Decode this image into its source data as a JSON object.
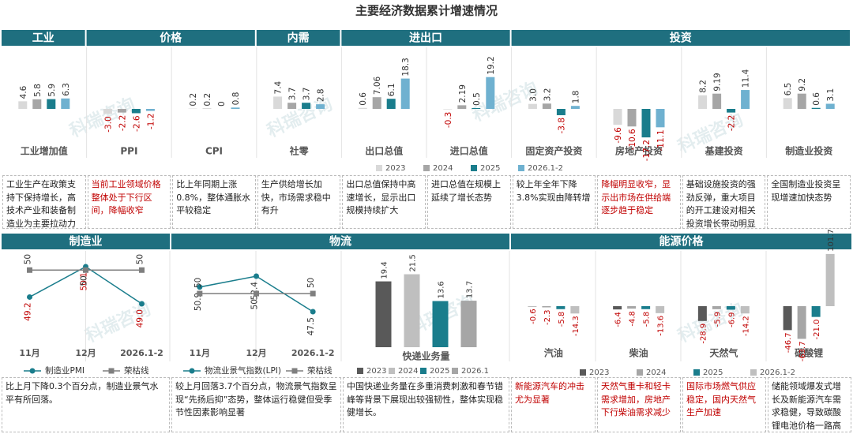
{
  "title": "主要经济数据累计增速情况",
  "watermark": "科瑞咨询",
  "top_sections": [
    "工业",
    "价格",
    "内需",
    "进出口",
    "投资"
  ],
  "bottom_sections": [
    "制造业",
    "物流",
    "能源价格"
  ],
  "top_notes": [
    {
      "text": "工业生产在政策支持下保持增长，高技术产业和装备制造业为主要拉动力",
      "color": "#222222"
    },
    {
      "text": "当前工业领域价格整体处于下行区间，降幅收窄",
      "color": "#c00000"
    },
    {
      "text": "比上年同期上涨0.8%，整体通胀水平较稳定",
      "color": "#222222"
    },
    {
      "text": "生产供给增长加快，市场需求稳中有升",
      "color": "#222222"
    },
    {
      "text": "出口总值保持中高速增长，显示出口规模持续扩大",
      "color": "#222222"
    },
    {
      "text": "进口总值在规模上延续了增长态势",
      "color": "#222222"
    },
    {
      "text": "较上年全年下降3.8%实现由降转增",
      "color": "#222222"
    },
    {
      "text": "降幅明显收窄，显示出市场在供给端逐步趋于稳定",
      "color": "#c00000"
    },
    {
      "text": "基础设施投资的强劲反弹，重大项目的开工建设对相关投资增长带动明显",
      "color": "#222222"
    },
    {
      "text": "全国制造业投资呈现增速加快态势",
      "color": "#222222"
    }
  ],
  "bottom_notes": [
    {
      "text": "比上月下降0.3个百分点，制造业景气水平有所回落。",
      "color": "#222222"
    },
    {
      "text": "较上月回落3.7个百分点，物流景气指数呈现“先扬后抑”态势，整体运行稳健但受季节性因素影响显著",
      "color": "#222222"
    },
    {
      "text": "中国快递业务量在多重消费刺激和春节错峰等背景下展现出较强韧性，整体实现稳健增长。",
      "color": "#222222"
    },
    {
      "text": "新能源汽车的冲击尤为显著",
      "color": "#c00000"
    },
    {
      "text": "天然气重卡和轻卡需求增加，房地产下行柴油需求减少",
      "color": "#c00000"
    },
    {
      "text": "国际市场燃气供应稳定，国内天然气生产加速",
      "color": "#c00000"
    },
    {
      "text": "储能领域爆发式增长及新能源汽车需求稳健，导致碳酸锂电池价格一路高涨",
      "color": "#222222"
    }
  ],
  "chart_data": [
    {
      "type": "bar",
      "categories": [
        "工业增加值",
        "PPI",
        "CPI",
        "社零",
        "出口总值",
        "进口总值",
        "固定资产投资",
        "房地产投资",
        "基建投资",
        "制造业投资"
      ],
      "series": [
        {
          "name": "2023",
          "color": "#d9d9d9",
          "values": [
            4.6,
            -3.0,
            0.2,
            7.4,
            0.6,
            -0.3,
            3.0,
            -9.6,
            8.2,
            6.5
          ],
          "value_labels": [
            "4.6",
            "-3.0",
            "0.2",
            "7.4",
            "0.6",
            "-0.3",
            "3.0",
            "-9.6",
            "8.2",
            "6.5"
          ]
        },
        {
          "name": "2024",
          "color": "#a6a6a6",
          "values": [
            5.8,
            -2.2,
            0.2,
            3.7,
            7.06,
            2.19,
            3.2,
            -10.6,
            9.19,
            9.2
          ],
          "value_labels": [
            "5.8",
            "-2.2",
            "0.2",
            "3.7",
            "7.06",
            "2.19",
            "3.2",
            "-10.6",
            "9.19",
            "9.2"
          ]
        },
        {
          "name": "2025",
          "color": "#1a7d8c",
          "values": [
            5.9,
            -2.6,
            0,
            3.7,
            6.1,
            0.5,
            -3.8,
            -17.2,
            -2.2,
            0.6
          ],
          "value_labels": [
            "5.9",
            "-2.6",
            "0",
            "3.7",
            "6.1",
            "0.5",
            "-3.8",
            "-17.2",
            "-2.2",
            "0.6"
          ]
        },
        {
          "name": "2026.1-2",
          "color": "#6fb1d0",
          "values": [
            6.3,
            -1.2,
            0.8,
            2.8,
            18.3,
            19.2,
            1.8,
            -11.1,
            11.4,
            3.1
          ],
          "value_labels": [
            "6.3",
            "-1.2",
            "0.8",
            "2.8",
            "18.3",
            "19.2",
            "1.8",
            "-11.1",
            "11.4",
            "3.1"
          ]
        }
      ]
    },
    {
      "type": "line",
      "categories": [
        "11月",
        "12月",
        "2026.1-2"
      ],
      "series": [
        {
          "name": "制造业PMI",
          "color": "#1a7d8c",
          "values": [
            49.2,
            50.1,
            49.0
          ],
          "value_labels": [
            "49.2",
            "50.1",
            "49.0"
          ]
        },
        {
          "name": "荣枯线",
          "color": "#7f7f7f",
          "values": [
            50,
            50,
            50
          ]
        }
      ]
    },
    {
      "type": "line",
      "categories": [
        "11月",
        "12月",
        "2026.1-2"
      ],
      "series": [
        {
          "name": "物流业景气指数(LPI)",
          "color": "#1a7d8c",
          "values": [
            50.9,
            52.4,
            47.5
          ]
        },
        {
          "name": "荣枯线",
          "color": "#7f7f7f",
          "values": [
            50,
            50,
            50
          ]
        }
      ]
    },
    {
      "type": "bar",
      "categories": [
        "快递业务量"
      ],
      "series": [
        {
          "name": "2023",
          "color": "#595959",
          "values": [
            19.4
          ]
        },
        {
          "name": "2024",
          "color": "#bfbfbf",
          "values": [
            21.5
          ]
        },
        {
          "name": "2025",
          "color": "#1a7d8c",
          "values": [
            13.6
          ]
        },
        {
          "name": "2026.1",
          "color": "#a6a6a6",
          "values": [
            13.7
          ]
        }
      ]
    },
    {
      "type": "bar",
      "categories": [
        "汽油",
        "柴油",
        "天然气",
        "碳酸锂"
      ],
      "series": [
        {
          "name": "2023",
          "color": "#595959",
          "values": [
            -0.6,
            -6.4,
            -28.9,
            -46.7
          ]
        },
        {
          "name": "2024",
          "color": "#a6a6a6",
          "values": [
            -2.3,
            -4.8,
            -5.9,
            -63.7
          ]
        },
        {
          "name": "2025",
          "color": "#1a7d8c",
          "values": [
            -5.8,
            -5.8,
            -6.9,
            -21.0
          ],
          "value_labels": [
            "-5.8",
            "-5.8",
            "-6.9",
            "-21.0"
          ]
        },
        {
          "name": "2026.1-2",
          "color": "#bfbfbf",
          "values": [
            -14.3,
            -13.6,
            -14.2,
            101.7
          ]
        }
      ]
    }
  ]
}
